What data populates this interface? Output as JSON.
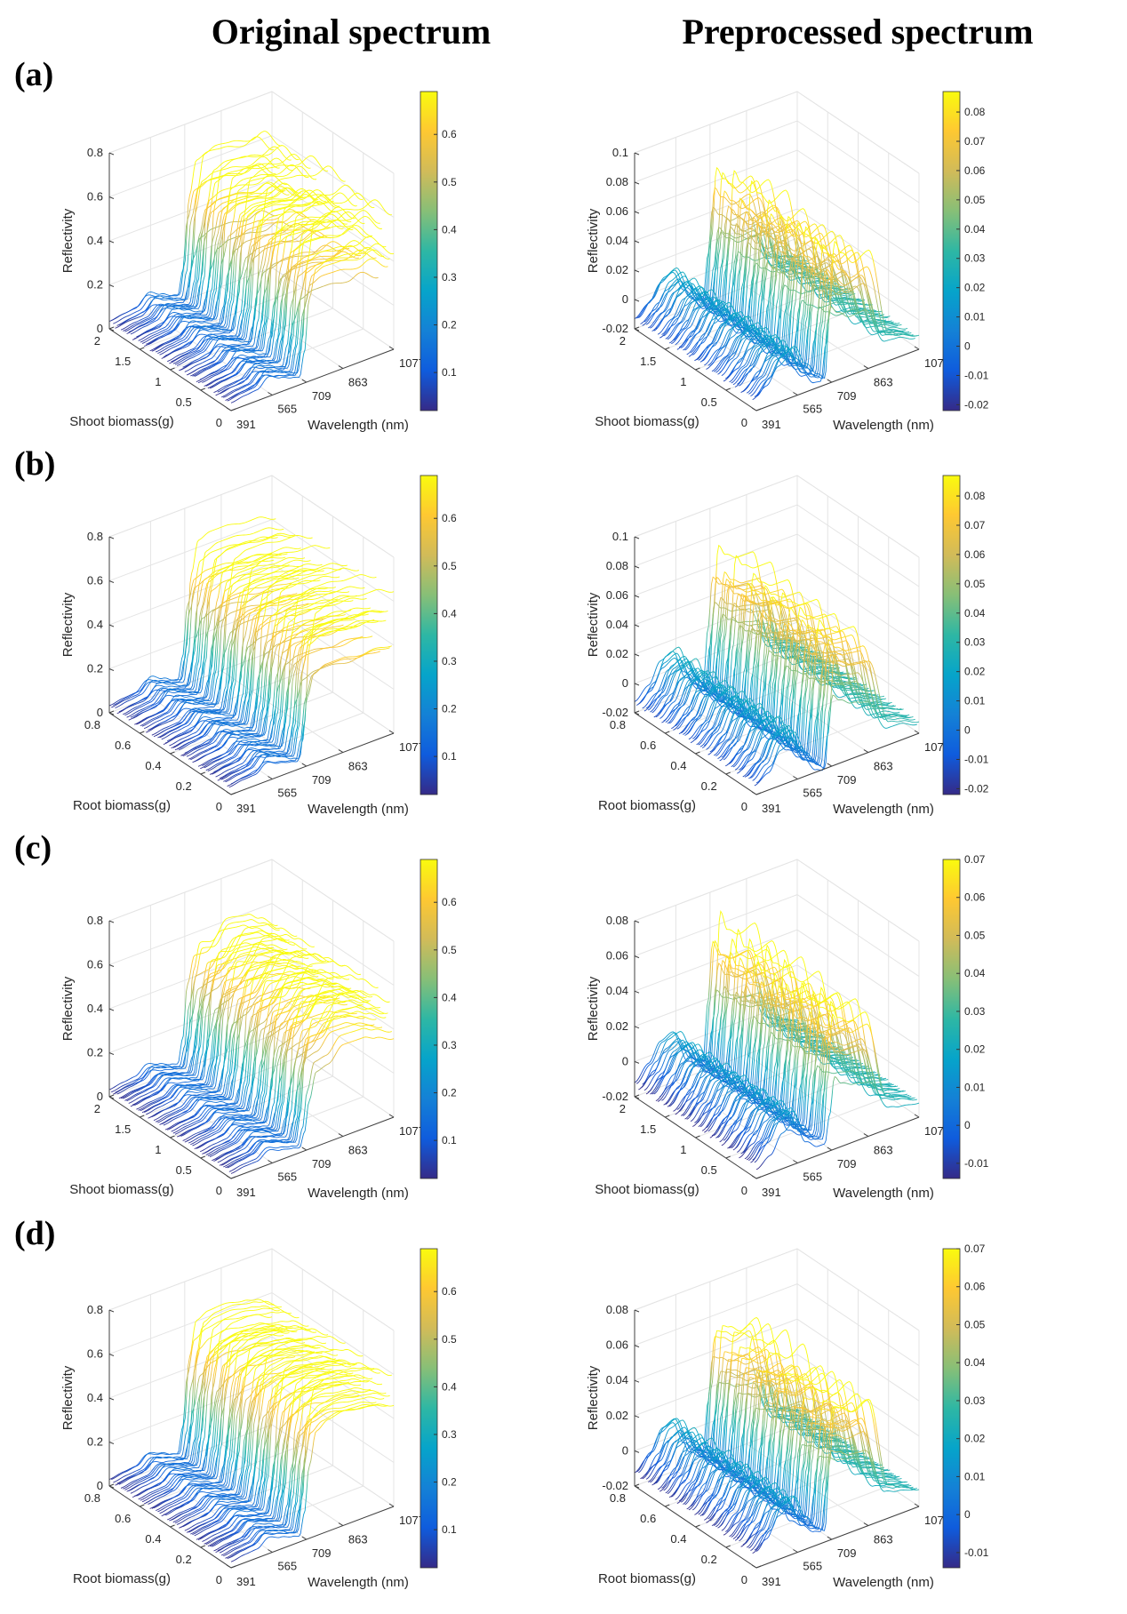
{
  "figure": {
    "column_titles": [
      "Original spectrum",
      "Preprocessed spectrum"
    ],
    "panel_labels": [
      "(a)",
      "(b)",
      "(c)",
      "(d)"
    ]
  },
  "chart_data": [
    {
      "panel": "(a)",
      "column": "Original spectrum",
      "type": "surface",
      "xlabel": "Wavelength (nm)",
      "ylabel": "Shoot biomass(g)",
      "zlabel": "Reflectivity",
      "xlim": [
        391,
        1077
      ],
      "x_ticks": [
        "391",
        "565",
        "709",
        "863",
        "1077"
      ],
      "ylim": [
        0,
        2
      ],
      "y_ticks": [
        "0",
        "0.5",
        "1",
        "1.5",
        "2"
      ],
      "zlim": [
        0,
        0.8
      ],
      "z_ticks": [
        "0",
        "0.2",
        "0.4",
        "0.6",
        "0.8"
      ],
      "clim": [
        0.02,
        0.69
      ],
      "colorbar_ticks": [
        "0.1",
        "0.2",
        "0.3",
        "0.4",
        "0.5",
        "0.6"
      ],
      "colormap": "parula",
      "grid": true,
      "wavelength_samples": [
        391,
        450,
        500,
        550,
        600,
        650,
        680,
        700,
        720,
        750,
        800,
        863,
        950,
        1000,
        1077
      ],
      "reflectance_max": [
        0.05,
        0.06,
        0.07,
        0.12,
        0.09,
        0.06,
        0.05,
        0.2,
        0.55,
        0.72,
        0.74,
        0.73,
        0.7,
        0.72,
        0.62
      ],
      "reflectance_min": [
        0.02,
        0.03,
        0.03,
        0.06,
        0.04,
        0.03,
        0.02,
        0.08,
        0.2,
        0.28,
        0.3,
        0.3,
        0.28,
        0.3,
        0.25
      ]
    },
    {
      "panel": "(a)",
      "column": "Preprocessed spectrum",
      "type": "surface",
      "xlabel": "Wavelength (nm)",
      "ylabel": "Shoot biomass(g)",
      "zlabel": "Reflectivity",
      "xlim": [
        391,
        1077
      ],
      "x_ticks": [
        "391",
        "565",
        "709",
        "863",
        "1077"
      ],
      "ylim": [
        0,
        2
      ],
      "y_ticks": [
        "0",
        "0.5",
        "1",
        "1.5",
        "2"
      ],
      "zlim": [
        -0.02,
        0.1
      ],
      "z_ticks": [
        "-0.02",
        "0",
        "0.02",
        "0.04",
        "0.06",
        "0.08",
        "0.1"
      ],
      "clim": [
        -0.022,
        0.087
      ],
      "colorbar_ticks": [
        "-0.02",
        "-0.01",
        "0",
        "0.01",
        "0.02",
        "0.03",
        "0.04",
        "0.05",
        "0.06",
        "0.07",
        "0.08"
      ],
      "colormap": "parula",
      "grid": true,
      "wavelength_samples": [
        391,
        450,
        500,
        550,
        600,
        650,
        680,
        700,
        720,
        750,
        800,
        863,
        950,
        1000,
        1077
      ],
      "reflectance_max": [
        -0.01,
        0.0,
        0.012,
        0.015,
        0.0,
        -0.01,
        -0.015,
        0.03,
        0.08,
        0.07,
        0.06,
        0.065,
        0.0,
        -0.005,
        -0.01
      ],
      "reflectance_min": [
        -0.015,
        -0.01,
        0.0,
        0.005,
        -0.01,
        -0.02,
        -0.02,
        0.0,
        0.02,
        0.015,
        0.01,
        0.01,
        -0.01,
        -0.01,
        -0.015
      ]
    },
    {
      "panel": "(b)",
      "column": "Original spectrum",
      "type": "surface",
      "xlabel": "Wavelength (nm)",
      "ylabel": "Root biomass(g)",
      "zlabel": "Reflectivity",
      "xlim": [
        391,
        1077
      ],
      "x_ticks": [
        "391",
        "565",
        "709",
        "863",
        "1077"
      ],
      "ylim": [
        0,
        0.8
      ],
      "y_ticks": [
        "0",
        "0.2",
        "0.4",
        "0.6",
        "0.8"
      ],
      "zlim": [
        0,
        0.8
      ],
      "z_ticks": [
        "0",
        "0.2",
        "0.4",
        "0.6",
        "0.8"
      ],
      "clim": [
        0.02,
        0.69
      ],
      "colorbar_ticks": [
        "0.1",
        "0.2",
        "0.3",
        "0.4",
        "0.5",
        "0.6"
      ],
      "colormap": "parula",
      "grid": true,
      "wavelength_samples": [
        391,
        450,
        500,
        550,
        600,
        650,
        680,
        700,
        720,
        750,
        800,
        863,
        950,
        1000,
        1077
      ],
      "reflectance_max": [
        0.05,
        0.06,
        0.07,
        0.12,
        0.09,
        0.06,
        0.05,
        0.2,
        0.55,
        0.7,
        0.72,
        0.72,
        0.7,
        0.7,
        0.66
      ],
      "reflectance_min": [
        0.02,
        0.03,
        0.03,
        0.06,
        0.04,
        0.03,
        0.02,
        0.08,
        0.22,
        0.3,
        0.32,
        0.32,
        0.3,
        0.31,
        0.3
      ]
    },
    {
      "panel": "(b)",
      "column": "Preprocessed spectrum",
      "type": "surface",
      "xlabel": "Wavelength (nm)",
      "ylabel": "Root biomass(g)",
      "zlabel": "Reflectivity",
      "xlim": [
        391,
        1077
      ],
      "x_ticks": [
        "391",
        "565",
        "709",
        "863",
        "1077"
      ],
      "ylim": [
        0,
        0.8
      ],
      "y_ticks": [
        "0",
        "0.2",
        "0.4",
        "0.6",
        "0.8"
      ],
      "zlim": [
        -0.02,
        0.1
      ],
      "z_ticks": [
        "-0.02",
        "0",
        "0.02",
        "0.04",
        "0.06",
        "0.08",
        "0.1"
      ],
      "clim": [
        -0.022,
        0.087
      ],
      "colorbar_ticks": [
        "-0.02",
        "-0.01",
        "0",
        "0.01",
        "0.02",
        "0.03",
        "0.04",
        "0.05",
        "0.06",
        "0.07",
        "0.08"
      ],
      "colormap": "parula",
      "grid": true,
      "wavelength_samples": [
        391,
        450,
        500,
        550,
        600,
        650,
        680,
        700,
        720,
        750,
        800,
        863,
        950,
        1000,
        1077
      ],
      "reflectance_max": [
        -0.01,
        0.0,
        0.015,
        0.018,
        0.0,
        -0.012,
        -0.018,
        0.035,
        0.078,
        0.07,
        0.065,
        0.065,
        0.0,
        -0.005,
        -0.01
      ],
      "reflectance_min": [
        -0.015,
        -0.01,
        0.002,
        0.006,
        -0.01,
        -0.02,
        -0.022,
        0.0,
        0.025,
        0.02,
        0.015,
        0.012,
        -0.01,
        -0.01,
        -0.015
      ]
    },
    {
      "panel": "(c)",
      "column": "Original spectrum",
      "type": "surface",
      "xlabel": "Wavelength (nm)",
      "ylabel": "Shoot biomass(g)",
      "zlabel": "Reflectivity",
      "xlim": [
        391,
        1077
      ],
      "x_ticks": [
        "391",
        "565",
        "709",
        "863",
        "1077"
      ],
      "ylim": [
        0,
        2
      ],
      "y_ticks": [
        "0",
        "0.5",
        "1",
        "1.5",
        "2"
      ],
      "zlim": [
        0,
        0.8
      ],
      "z_ticks": [
        "0",
        "0.2",
        "0.4",
        "0.6",
        "0.8"
      ],
      "clim": [
        0.02,
        0.69
      ],
      "colorbar_ticks": [
        "0.1",
        "0.2",
        "0.3",
        "0.4",
        "0.5",
        "0.6"
      ],
      "colormap": "parula",
      "grid": true,
      "wavelength_samples": [
        391,
        450,
        500,
        550,
        600,
        650,
        680,
        700,
        720,
        750,
        800,
        863,
        950,
        1000,
        1077
      ],
      "reflectance_max": [
        0.04,
        0.05,
        0.06,
        0.1,
        0.08,
        0.05,
        0.04,
        0.18,
        0.5,
        0.62,
        0.6,
        0.68,
        0.66,
        0.62,
        0.55
      ],
      "reflectance_min": [
        0.02,
        0.03,
        0.03,
        0.06,
        0.04,
        0.03,
        0.02,
        0.07,
        0.18,
        0.3,
        0.32,
        0.38,
        0.38,
        0.36,
        0.33
      ]
    },
    {
      "panel": "(c)",
      "column": "Preprocessed spectrum",
      "type": "surface",
      "xlabel": "Wavelength (nm)",
      "ylabel": "Shoot biomass(g)",
      "zlabel": "Reflectivity",
      "xlim": [
        391,
        1077
      ],
      "x_ticks": [
        "391",
        "565",
        "709",
        "863",
        "1077"
      ],
      "ylim": [
        0,
        2
      ],
      "y_ticks": [
        "0",
        "0.5",
        "1",
        "1.5",
        "2"
      ],
      "zlim": [
        -0.02,
        0.08
      ],
      "z_ticks": [
        "-0.02",
        "0",
        "0.02",
        "0.04",
        "0.06",
        "0.08"
      ],
      "clim": [
        -0.014,
        0.07
      ],
      "colorbar_ticks": [
        "-0.01",
        "0",
        "0.01",
        "0.02",
        "0.03",
        "0.04",
        "0.05",
        "0.06",
        "0.07"
      ],
      "colormap": "parula",
      "grid": true,
      "wavelength_samples": [
        391,
        450,
        500,
        550,
        600,
        650,
        680,
        700,
        720,
        750,
        800,
        863,
        950,
        1000,
        1077
      ],
      "reflectance_max": [
        -0.01,
        0.0,
        0.01,
        0.012,
        0.0,
        -0.01,
        -0.012,
        0.03,
        0.072,
        0.06,
        0.055,
        0.058,
        0.0,
        -0.005,
        -0.01
      ],
      "reflectance_min": [
        -0.015,
        -0.01,
        0.0,
        0.004,
        -0.01,
        -0.015,
        -0.015,
        0.0,
        0.02,
        0.015,
        0.012,
        0.01,
        -0.008,
        -0.01,
        -0.012
      ]
    },
    {
      "panel": "(d)",
      "column": "Original spectrum",
      "type": "surface",
      "xlabel": "Wavelength (nm)",
      "ylabel": "Root biomass(g)",
      "zlabel": "Reflectivity",
      "xlim": [
        391,
        1077
      ],
      "x_ticks": [
        "391",
        "565",
        "709",
        "863",
        "1077"
      ],
      "ylim": [
        0,
        0.8
      ],
      "y_ticks": [
        "0",
        "0.2",
        "0.4",
        "0.6",
        "0.8"
      ],
      "zlim": [
        0,
        0.8
      ],
      "z_ticks": [
        "0",
        "0.2",
        "0.4",
        "0.6",
        "0.8"
      ],
      "clim": [
        0.02,
        0.69
      ],
      "colorbar_ticks": [
        "0.1",
        "0.2",
        "0.3",
        "0.4",
        "0.5",
        "0.6"
      ],
      "colormap": "parula",
      "grid": true,
      "wavelength_samples": [
        391,
        450,
        500,
        550,
        600,
        650,
        680,
        700,
        720,
        750,
        800,
        863,
        950,
        1000,
        1077
      ],
      "reflectance_max": [
        0.04,
        0.05,
        0.06,
        0.1,
        0.08,
        0.05,
        0.04,
        0.2,
        0.52,
        0.68,
        0.7,
        0.7,
        0.68,
        0.66,
        0.6
      ],
      "reflectance_min": [
        0.02,
        0.03,
        0.03,
        0.06,
        0.04,
        0.03,
        0.02,
        0.08,
        0.22,
        0.36,
        0.4,
        0.42,
        0.4,
        0.4,
        0.38
      ]
    },
    {
      "panel": "(d)",
      "column": "Preprocessed spectrum",
      "type": "surface",
      "xlabel": "Wavelength (nm)",
      "ylabel": "Root biomass(g)",
      "zlabel": "Reflectivity",
      "xlim": [
        391,
        1077
      ],
      "x_ticks": [
        "391",
        "565",
        "709",
        "863",
        "1077"
      ],
      "ylim": [
        0,
        0.8
      ],
      "y_ticks": [
        "0",
        "0.2",
        "0.4",
        "0.6",
        "0.8"
      ],
      "zlim": [
        -0.02,
        0.08
      ],
      "z_ticks": [
        "-0.02",
        "0",
        "0.02",
        "0.04",
        "0.06",
        "0.08"
      ],
      "clim": [
        -0.014,
        0.07
      ],
      "colorbar_ticks": [
        "-0.01",
        "0",
        "0.01",
        "0.02",
        "0.03",
        "0.04",
        "0.05",
        "0.06",
        "0.07"
      ],
      "colormap": "parula",
      "grid": true,
      "wavelength_samples": [
        391,
        450,
        500,
        550,
        600,
        650,
        680,
        700,
        720,
        750,
        800,
        863,
        950,
        1000,
        1077
      ],
      "reflectance_max": [
        -0.01,
        0.0,
        0.012,
        0.014,
        0.0,
        -0.01,
        -0.013,
        0.03,
        0.062,
        0.06,
        0.055,
        0.06,
        0.0,
        -0.004,
        -0.01
      ],
      "reflectance_min": [
        -0.014,
        -0.01,
        0.0,
        0.004,
        -0.01,
        -0.015,
        -0.016,
        0.0,
        0.02,
        0.018,
        0.014,
        0.012,
        -0.008,
        -0.01,
        -0.012
      ]
    }
  ]
}
